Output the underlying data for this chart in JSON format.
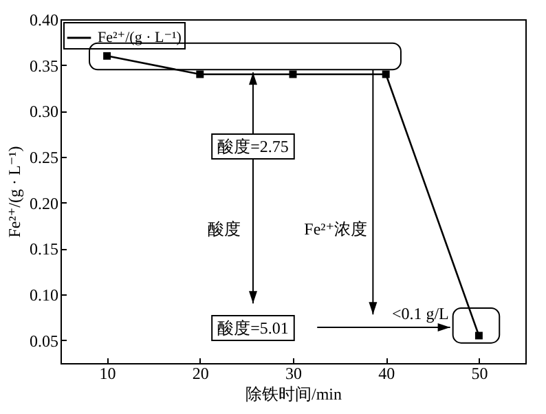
{
  "chart_data": {
    "type": "line",
    "xlabel": "除铁时间/min",
    "ylabel": "Fe²⁺/(g · L⁻¹)",
    "x": [
      10,
      20,
      30,
      40,
      50
    ],
    "series": [
      {
        "name": "Fe²⁺/(g · L⁻¹)",
        "color": "#000000",
        "values": [
          0.36,
          0.34,
          0.34,
          0.34,
          0.055
        ]
      }
    ],
    "xlim": [
      5,
      55
    ],
    "xticks": [
      10,
      20,
      30,
      40,
      50
    ],
    "ylim": [
      0.025,
      0.4
    ],
    "yticks": [
      0.05,
      {
        "value": 0.1,
        "label": "0.10"
      },
      0.15,
      {
        "value": 0.2,
        "label": "0.20"
      },
      0.25,
      {
        "value": 0.3,
        "label": "0.30"
      },
      0.35,
      {
        "value": 0.4,
        "label": "0.40"
      }
    ],
    "marker": "square",
    "line_style": "solid",
    "legend": "top left",
    "grid": false,
    "annotations": [
      "酸度=2.75",
      "酸度",
      "酸度=5.01",
      "Fe²⁺浓度",
      "<0.1 g/L"
    ]
  }
}
